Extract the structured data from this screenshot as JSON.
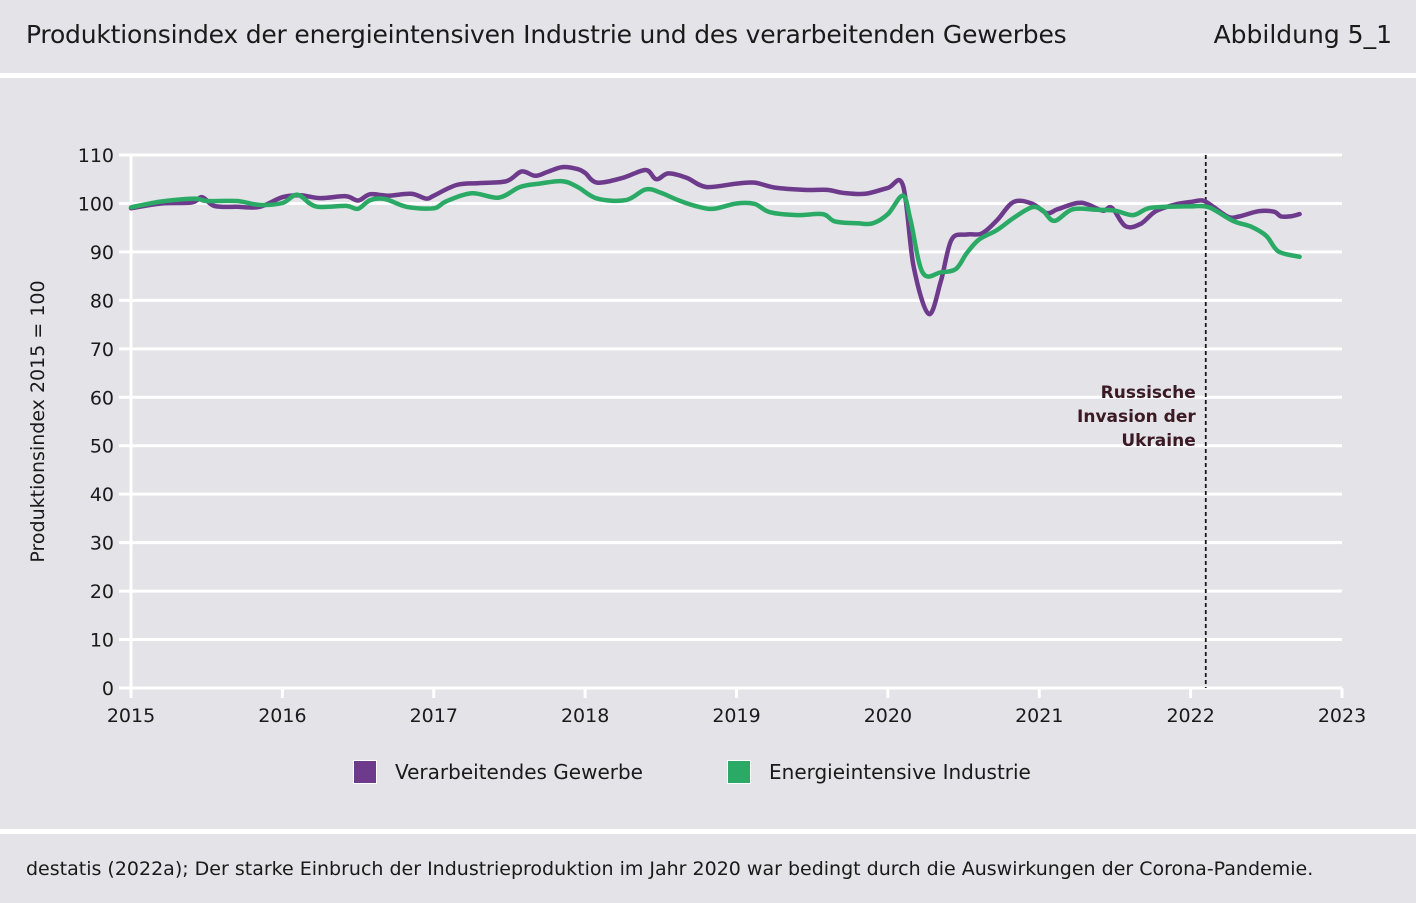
{
  "header": {
    "title": "Produktionsindex der energieintensiven Industrie und des verarbeitenden Gewerbes",
    "figure_label": "Abbildung 5_1"
  },
  "footer": {
    "source_note": "destatis (2022a); Der starke Einbruch der Industrieproduktion im Jahr 2020 war bedingt durch die Auswirkungen der Corona-Pandemie."
  },
  "colors": {
    "verarbeitendes": "#6e3b8c",
    "energieintensiv": "#2baa66",
    "grid": "#ffffff",
    "annotation": "#3b1a24"
  },
  "chart_data": {
    "type": "line",
    "title": "Produktionsindex der energieintensiven Industrie und des verarbeitenden Gewerbes",
    "xlabel": "",
    "ylabel": "Produktionsindex 2015 = 100",
    "xlim": [
      2015,
      2023
    ],
    "ylim": [
      0,
      110
    ],
    "x_ticks": [
      "2015",
      "2016",
      "2017",
      "2018",
      "2019",
      "2020",
      "2021",
      "2022",
      "2023"
    ],
    "y_ticks": [
      "0",
      "10",
      "20",
      "30",
      "40",
      "50",
      "60",
      "70",
      "80",
      "90",
      "100",
      "110"
    ],
    "grid": "horizontal",
    "legend_position": "bottom",
    "series": [
      {
        "name": "Verarbeitendes Gewerbe",
        "color": "#6e3b8c",
        "points": [
          [
            2015.0,
            99.0
          ],
          [
            2015.2,
            100.0
          ],
          [
            2015.4,
            100.2
          ],
          [
            2015.47,
            101.3
          ],
          [
            2015.55,
            99.5
          ],
          [
            2015.7,
            99.3
          ],
          [
            2015.85,
            99.3
          ],
          [
            2016.0,
            101.3
          ],
          [
            2016.12,
            101.7
          ],
          [
            2016.25,
            101.1
          ],
          [
            2016.42,
            101.5
          ],
          [
            2016.5,
            100.6
          ],
          [
            2016.58,
            101.9
          ],
          [
            2016.7,
            101.6
          ],
          [
            2016.85,
            102.0
          ],
          [
            2016.95,
            101.0
          ],
          [
            2017.0,
            101.6
          ],
          [
            2017.15,
            103.8
          ],
          [
            2017.3,
            104.2
          ],
          [
            2017.48,
            104.6
          ],
          [
            2017.58,
            106.6
          ],
          [
            2017.67,
            105.7
          ],
          [
            2017.75,
            106.5
          ],
          [
            2017.85,
            107.5
          ],
          [
            2017.95,
            107.1
          ],
          [
            2018.0,
            106.3
          ],
          [
            2018.08,
            104.3
          ],
          [
            2018.25,
            105.3
          ],
          [
            2018.4,
            106.9
          ],
          [
            2018.47,
            105.0
          ],
          [
            2018.55,
            106.2
          ],
          [
            2018.67,
            105.3
          ],
          [
            2018.8,
            103.4
          ],
          [
            2019.0,
            104.1
          ],
          [
            2019.12,
            104.3
          ],
          [
            2019.25,
            103.3
          ],
          [
            2019.45,
            102.8
          ],
          [
            2019.6,
            102.8
          ],
          [
            2019.7,
            102.2
          ],
          [
            2019.85,
            102.0
          ],
          [
            2020.0,
            103.2
          ],
          [
            2020.1,
            103.7
          ],
          [
            2020.17,
            87.0
          ],
          [
            2020.27,
            77.2
          ],
          [
            2020.35,
            84.0
          ],
          [
            2020.42,
            92.5
          ],
          [
            2020.52,
            93.6
          ],
          [
            2020.62,
            93.8
          ],
          [
            2020.72,
            96.5
          ],
          [
            2020.83,
            100.3
          ],
          [
            2020.95,
            100.0
          ],
          [
            2021.05,
            98.0
          ],
          [
            2021.12,
            98.8
          ],
          [
            2021.25,
            100.1
          ],
          [
            2021.32,
            99.8
          ],
          [
            2021.42,
            98.5
          ],
          [
            2021.48,
            99.1
          ],
          [
            2021.57,
            95.3
          ],
          [
            2021.67,
            95.8
          ],
          [
            2021.77,
            98.4
          ],
          [
            2021.9,
            99.8
          ],
          [
            2022.0,
            100.3
          ],
          [
            2022.08,
            100.6
          ],
          [
            2022.15,
            99.3
          ],
          [
            2022.25,
            97.2
          ],
          [
            2022.32,
            97.3
          ],
          [
            2022.45,
            98.4
          ],
          [
            2022.55,
            98.3
          ],
          [
            2022.6,
            97.3
          ],
          [
            2022.67,
            97.4
          ],
          [
            2022.72,
            97.8
          ]
        ]
      },
      {
        "name": "Energieintensive Industrie",
        "color": "#2baa66",
        "points": [
          [
            2015.0,
            99.2
          ],
          [
            2015.2,
            100.4
          ],
          [
            2015.42,
            101.0
          ],
          [
            2015.5,
            100.5
          ],
          [
            2015.7,
            100.5
          ],
          [
            2015.85,
            99.7
          ],
          [
            2016.0,
            100.1
          ],
          [
            2016.1,
            101.8
          ],
          [
            2016.22,
            99.4
          ],
          [
            2016.42,
            99.5
          ],
          [
            2016.5,
            98.9
          ],
          [
            2016.58,
            100.7
          ],
          [
            2016.68,
            100.9
          ],
          [
            2016.82,
            99.3
          ],
          [
            2017.0,
            99.0
          ],
          [
            2017.08,
            100.4
          ],
          [
            2017.25,
            102.1
          ],
          [
            2017.43,
            101.2
          ],
          [
            2017.57,
            103.4
          ],
          [
            2017.7,
            104.1
          ],
          [
            2017.85,
            104.6
          ],
          [
            2017.95,
            103.4
          ],
          [
            2018.08,
            101.0
          ],
          [
            2018.27,
            100.7
          ],
          [
            2018.4,
            102.9
          ],
          [
            2018.5,
            102.2
          ],
          [
            2018.62,
            100.6
          ],
          [
            2018.75,
            99.3
          ],
          [
            2018.85,
            98.9
          ],
          [
            2019.0,
            100.0
          ],
          [
            2019.12,
            99.9
          ],
          [
            2019.22,
            98.2
          ],
          [
            2019.4,
            97.6
          ],
          [
            2019.57,
            97.8
          ],
          [
            2019.65,
            96.3
          ],
          [
            2019.8,
            95.9
          ],
          [
            2019.9,
            95.9
          ],
          [
            2020.0,
            97.8
          ],
          [
            2020.1,
            101.6
          ],
          [
            2020.15,
            96.5
          ],
          [
            2020.23,
            85.7
          ],
          [
            2020.35,
            85.8
          ],
          [
            2020.45,
            86.5
          ],
          [
            2020.52,
            89.7
          ],
          [
            2020.6,
            92.5
          ],
          [
            2020.72,
            94.5
          ],
          [
            2020.83,
            97.0
          ],
          [
            2020.95,
            99.2
          ],
          [
            2021.02,
            98.6
          ],
          [
            2021.1,
            96.4
          ],
          [
            2021.22,
            98.8
          ],
          [
            2021.38,
            98.7
          ],
          [
            2021.5,
            98.5
          ],
          [
            2021.62,
            97.6
          ],
          [
            2021.72,
            99.0
          ],
          [
            2021.85,
            99.3
          ],
          [
            2022.0,
            99.4
          ],
          [
            2022.12,
            99.2
          ],
          [
            2022.28,
            96.4
          ],
          [
            2022.4,
            95.2
          ],
          [
            2022.5,
            93.3
          ],
          [
            2022.58,
            90.1
          ],
          [
            2022.72,
            89.0
          ]
        ]
      }
    ],
    "annotations": [
      {
        "x": 2022.1,
        "type": "vertical-dashed-line",
        "label": [
          "Russische",
          "Invasion der",
          "Ukraine"
        ]
      }
    ]
  }
}
